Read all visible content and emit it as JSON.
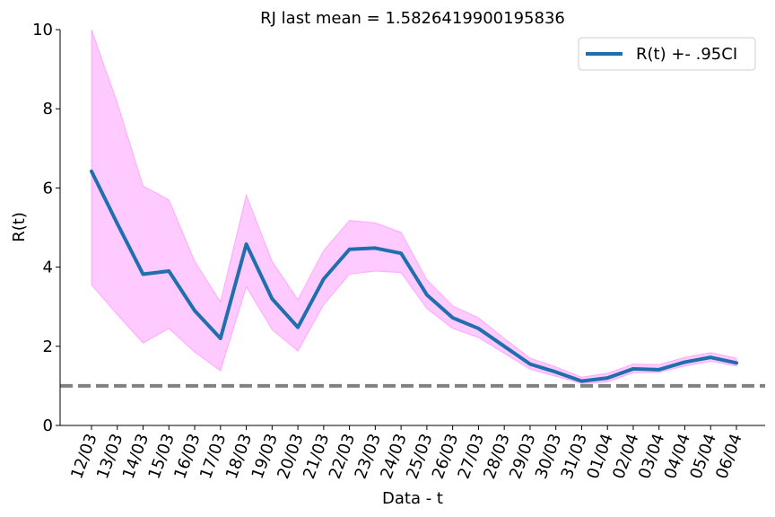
{
  "chart_data": {
    "type": "line",
    "title": "RJ last mean = 1.5826419900195836",
    "xlabel": "Data - t",
    "ylabel": "R(t)",
    "categories": [
      "12/03",
      "13/03",
      "14/03",
      "15/03",
      "16/03",
      "17/03",
      "18/03",
      "19/03",
      "20/03",
      "21/03",
      "22/03",
      "23/03",
      "24/03",
      "25/03",
      "26/03",
      "27/03",
      "28/03",
      "29/03",
      "30/03",
      "31/03",
      "01/04",
      "02/04",
      "03/04",
      "04/04",
      "05/04",
      "06/04"
    ],
    "ylim": [
      0,
      10
    ],
    "yticks": [
      "0",
      "2",
      "4",
      "6",
      "8",
      "10"
    ],
    "series": [
      {
        "name": "R(t) +- .95CI",
        "color": "#1f6fae",
        "values": [
          6.42,
          5.1,
          3.82,
          3.9,
          2.9,
          2.2,
          4.58,
          3.2,
          2.48,
          3.7,
          4.45,
          4.48,
          4.35,
          3.3,
          2.72,
          2.45,
          2.0,
          1.55,
          1.35,
          1.12,
          1.2,
          1.43,
          1.41,
          1.6,
          1.72,
          1.58
        ]
      }
    ],
    "ci": {
      "color": "#ff66ff",
      "lower": [
        3.55,
        2.8,
        2.08,
        2.45,
        1.85,
        1.38,
        3.5,
        2.42,
        1.88,
        3.05,
        3.82,
        3.9,
        3.86,
        2.95,
        2.45,
        2.22,
        1.82,
        1.42,
        1.24,
        1.06,
        1.1,
        1.33,
        1.34,
        1.5,
        1.62,
        1.5
      ],
      "upper": [
        10.0,
        8.15,
        6.05,
        5.7,
        4.15,
        3.12,
        5.82,
        4.15,
        3.18,
        4.42,
        5.18,
        5.12,
        4.88,
        3.68,
        3.02,
        2.72,
        2.2,
        1.7,
        1.48,
        1.22,
        1.32,
        1.55,
        1.54,
        1.72,
        1.84,
        1.7
      ]
    },
    "reference_line": {
      "y": 1.0,
      "color": "#808080",
      "style": "dashed"
    },
    "legend": {
      "placement": "top-right"
    },
    "grid": false
  }
}
